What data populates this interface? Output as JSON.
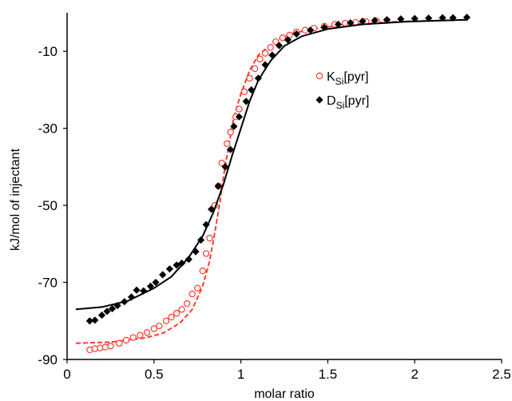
{
  "chart_data": {
    "type": "scatter",
    "title": "",
    "xlabel": "molar ratio",
    "ylabel": "kJ/mol of injectant",
    "xlim": [
      0,
      2.5
    ],
    "ylim": [
      -90,
      0
    ],
    "xticks": [
      0,
      0.5,
      1,
      1.5,
      2,
      2.5
    ],
    "xtick_labels": [
      "0",
      "0.5",
      "1",
      "1.5",
      "2",
      "2.5"
    ],
    "yticks": [
      -10,
      -30,
      -50,
      -70,
      -90
    ],
    "ytick_labels": [
      "-10",
      "-30",
      "-50",
      "-70",
      "-90"
    ],
    "grid": false,
    "legend_position": "upper-right",
    "series": [
      {
        "name": "KSi[pyr]",
        "legend_main": "K",
        "legend_sub": "Si",
        "legend_suffix": "[pyr]",
        "color": "#ff3b30",
        "marker": "open-circle",
        "points": [
          [
            0.13,
            -87.5
          ],
          [
            0.16,
            -87.2
          ],
          [
            0.19,
            -87.0
          ],
          [
            0.22,
            -86.8
          ],
          [
            0.25,
            -86.5
          ],
          [
            0.3,
            -85.8
          ],
          [
            0.34,
            -85.0
          ],
          [
            0.38,
            -84.3
          ],
          [
            0.42,
            -83.7
          ],
          [
            0.46,
            -83.0
          ],
          [
            0.5,
            -82.0
          ],
          [
            0.53,
            -81.3
          ],
          [
            0.57,
            -80.0
          ],
          [
            0.6,
            -79.0
          ],
          [
            0.63,
            -78.0
          ],
          [
            0.66,
            -77.0
          ],
          [
            0.69,
            -75.5
          ],
          [
            0.72,
            -73.0
          ],
          [
            0.75,
            -71.5
          ],
          [
            0.78,
            -67.0
          ],
          [
            0.8,
            -62.5
          ],
          [
            0.82,
            -58.5
          ],
          [
            0.85,
            -50.0
          ],
          [
            0.87,
            -45.0
          ],
          [
            0.89,
            -39.0
          ],
          [
            0.92,
            -34.0
          ],
          [
            0.94,
            -31.0
          ],
          [
            0.97,
            -27.0
          ],
          [
            0.99,
            -25.0
          ],
          [
            1.02,
            -20.5
          ],
          [
            1.05,
            -17.0
          ],
          [
            1.08,
            -14.5
          ],
          [
            1.11,
            -12.0
          ],
          [
            1.14,
            -10.5
          ],
          [
            1.17,
            -9.0
          ],
          [
            1.2,
            -7.5
          ],
          [
            1.24,
            -6.5
          ],
          [
            1.28,
            -5.8
          ],
          [
            1.32,
            -5.0
          ],
          [
            1.37,
            -4.5
          ],
          [
            1.42,
            -4.0
          ],
          [
            1.48,
            -3.5
          ],
          [
            1.54,
            -3.0
          ],
          [
            1.6,
            -2.7
          ],
          [
            1.66,
            -2.5
          ],
          [
            1.72,
            -2.3
          ],
          [
            1.78,
            -2.1
          ],
          [
            1.84,
            -2.0
          ]
        ],
        "fit_curve": [
          [
            0.05,
            -85.8
          ],
          [
            0.25,
            -85.5
          ],
          [
            0.45,
            -84.4
          ],
          [
            0.55,
            -83.2
          ],
          [
            0.65,
            -80.5
          ],
          [
            0.72,
            -77.0
          ],
          [
            0.78,
            -71.0
          ],
          [
            0.82,
            -64.5
          ],
          [
            0.85,
            -57.0
          ],
          [
            0.88,
            -49.0
          ],
          [
            0.9,
            -42.5
          ],
          [
            0.93,
            -34.5
          ],
          [
            0.96,
            -27.0
          ],
          [
            1.0,
            -21.0
          ],
          [
            1.05,
            -15.0
          ],
          [
            1.1,
            -11.0
          ],
          [
            1.2,
            -7.2
          ],
          [
            1.3,
            -5.3
          ],
          [
            1.45,
            -3.9
          ],
          [
            1.65,
            -2.9
          ],
          [
            1.9,
            -2.3
          ],
          [
            2.3,
            -1.8
          ]
        ]
      },
      {
        "name": "DSi[pyr]",
        "legend_main": "D",
        "legend_sub": "Si",
        "legend_suffix": "[pyr]",
        "color": "#000000",
        "marker": "filled-diamond",
        "points": [
          [
            0.13,
            -80.0
          ],
          [
            0.16,
            -79.8
          ],
          [
            0.2,
            -78.5
          ],
          [
            0.23,
            -77.5
          ],
          [
            0.26,
            -76.8
          ],
          [
            0.29,
            -76.0
          ],
          [
            0.33,
            -75.0
          ],
          [
            0.37,
            -73.8
          ],
          [
            0.4,
            -72.0
          ],
          [
            0.44,
            -72.2
          ],
          [
            0.48,
            -71.0
          ],
          [
            0.51,
            -70.0
          ],
          [
            0.55,
            -68.0
          ],
          [
            0.59,
            -66.5
          ],
          [
            0.63,
            -65.5
          ],
          [
            0.66,
            -65.0
          ],
          [
            0.7,
            -64.0
          ],
          [
            0.74,
            -62.0
          ],
          [
            0.77,
            -59.0
          ],
          [
            0.8,
            -55.0
          ],
          [
            0.83,
            -51.0
          ],
          [
            0.87,
            -45.0
          ],
          [
            0.91,
            -40.0
          ],
          [
            0.94,
            -35.5
          ],
          [
            0.96,
            -29.5
          ],
          [
            0.99,
            -27.0
          ],
          [
            1.03,
            -23.0
          ],
          [
            1.06,
            -20.0
          ],
          [
            1.1,
            -17.0
          ],
          [
            1.14,
            -13.5
          ],
          [
            1.18,
            -11.0
          ],
          [
            1.22,
            -8.5
          ],
          [
            1.27,
            -7.0
          ],
          [
            1.32,
            -5.5
          ],
          [
            1.4,
            -4.5
          ],
          [
            1.48,
            -3.8
          ],
          [
            1.56,
            -3.0
          ],
          [
            1.63,
            -2.6
          ],
          [
            1.7,
            -2.2
          ],
          [
            1.77,
            -2.0
          ],
          [
            1.84,
            -1.8
          ],
          [
            1.92,
            -1.6
          ],
          [
            2.0,
            -1.5
          ],
          [
            2.08,
            -1.4
          ],
          [
            2.16,
            -1.3
          ],
          [
            2.22,
            -1.3
          ],
          [
            2.3,
            -1.2
          ]
        ],
        "fit_curve": [
          [
            0.05,
            -77.0
          ],
          [
            0.2,
            -76.4
          ],
          [
            0.35,
            -74.8
          ],
          [
            0.5,
            -71.5
          ],
          [
            0.6,
            -68.5
          ],
          [
            0.7,
            -63.5
          ],
          [
            0.78,
            -58.0
          ],
          [
            0.84,
            -52.0
          ],
          [
            0.9,
            -44.5
          ],
          [
            0.95,
            -37.0
          ],
          [
            1.0,
            -30.0
          ],
          [
            1.05,
            -23.0
          ],
          [
            1.1,
            -17.5
          ],
          [
            1.17,
            -12.5
          ],
          [
            1.25,
            -8.6
          ],
          [
            1.35,
            -6.1
          ],
          [
            1.5,
            -4.2
          ],
          [
            1.7,
            -3.0
          ],
          [
            1.95,
            -2.3
          ],
          [
            2.3,
            -1.8
          ]
        ]
      }
    ]
  }
}
